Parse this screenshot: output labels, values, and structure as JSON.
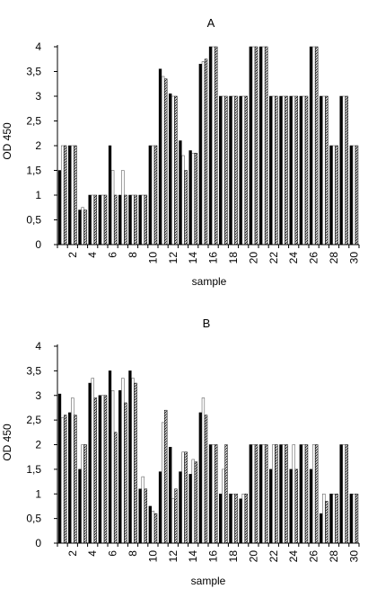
{
  "chart_data": [
    {
      "type": "bar",
      "title": "A",
      "xlabel": "sample",
      "ylabel": "OD 450",
      "ylim": [
        0,
        4
      ],
      "yticks": [
        "0",
        "0,5",
        "1",
        "1,5",
        "2",
        "2,5",
        "3",
        "3,5",
        "4"
      ],
      "xticks": [
        "2",
        "4",
        "6",
        "8",
        "10",
        "12",
        "14",
        "16",
        "18",
        "20",
        "22",
        "24",
        "26",
        "28",
        "30"
      ],
      "categories": [
        "1",
        "2",
        "3",
        "4",
        "5",
        "6",
        "7",
        "8",
        "9",
        "10",
        "11",
        "12",
        "13",
        "14",
        "15",
        "16",
        "17",
        "18",
        "19",
        "20",
        "21",
        "22",
        "23",
        "24",
        "25",
        "26",
        "27",
        "28",
        "29",
        "30"
      ],
      "series": [
        {
          "values": [
            1.5,
            2.0,
            0.7,
            1.0,
            1.0,
            2.0,
            1.0,
            1.0,
            1.0,
            2.0,
            3.55,
            3.05,
            2.1,
            1.9,
            3.65,
            4.0,
            3.0,
            3.0,
            3.0,
            4.0,
            4.0,
            3.0,
            3.0,
            3.0,
            3.0,
            4.0,
            3.0,
            2.0,
            3.0,
            2.0
          ]
        },
        {
          "values": [
            2.0,
            2.0,
            0.75,
            1.0,
            1.0,
            1.5,
            1.5,
            1.0,
            1.0,
            2.0,
            3.4,
            3.0,
            1.8,
            1.85,
            3.7,
            4.0,
            3.0,
            3.0,
            3.0,
            4.0,
            4.0,
            3.0,
            3.0,
            3.0,
            3.0,
            4.0,
            3.0,
            2.0,
            3.0,
            2.0
          ]
        },
        {
          "values": [
            2.0,
            2.0,
            0.7,
            1.0,
            1.0,
            1.0,
            1.0,
            1.0,
            1.0,
            2.0,
            3.35,
            3.0,
            1.5,
            1.85,
            3.75,
            4.0,
            3.0,
            3.0,
            3.0,
            4.0,
            4.0,
            3.0,
            3.0,
            3.0,
            3.0,
            4.0,
            3.0,
            2.0,
            3.0,
            2.0
          ]
        }
      ]
    },
    {
      "type": "bar",
      "title": "B",
      "xlabel": "sample",
      "ylabel": "OD 450",
      "ylim": [
        0,
        4
      ],
      "yticks": [
        "0",
        "0,5",
        "1",
        "1,5",
        "2",
        "2,5",
        "3",
        "3,5",
        "4"
      ],
      "xticks": [
        "2",
        "4",
        "6",
        "8",
        "10",
        "12",
        "14",
        "16",
        "18",
        "20",
        "22",
        "24",
        "26",
        "28",
        "30"
      ],
      "categories": [
        "1",
        "2",
        "3",
        "4",
        "5",
        "6",
        "7",
        "8",
        "9",
        "10",
        "11",
        "12",
        "13",
        "14",
        "15",
        "16",
        "17",
        "18",
        "19",
        "20",
        "21",
        "22",
        "23",
        "24",
        "25",
        "26",
        "27",
        "28",
        "29",
        "30"
      ],
      "series": [
        {
          "values": [
            3.03,
            2.65,
            1.5,
            3.25,
            3.0,
            3.5,
            3.1,
            3.5,
            1.1,
            0.75,
            1.45,
            1.95,
            1.45,
            1.4,
            2.65,
            2.0,
            1.0,
            1.0,
            0.9,
            2.0,
            2.0,
            1.5,
            2.0,
            1.5,
            2.0,
            1.5,
            0.6,
            1.0,
            2.0,
            1.0
          ]
        },
        {
          "values": [
            2.55,
            2.95,
            2.0,
            3.35,
            3.0,
            3.1,
            3.35,
            3.35,
            1.35,
            0.65,
            2.45,
            0.9,
            1.85,
            1.7,
            2.95,
            2.0,
            1.5,
            1.0,
            1.0,
            2.0,
            2.0,
            2.0,
            2.0,
            2.0,
            2.0,
            2.0,
            1.0,
            1.0,
            2.0,
            1.0
          ]
        },
        {
          "values": [
            2.6,
            2.6,
            2.0,
            2.95,
            3.0,
            2.25,
            2.85,
            3.25,
            1.1,
            0.6,
            2.7,
            1.1,
            1.85,
            1.65,
            2.6,
            2.0,
            2.0,
            1.0,
            1.0,
            2.0,
            2.0,
            2.0,
            2.0,
            1.5,
            2.0,
            2.0,
            0.85,
            1.0,
            2.0,
            1.0
          ]
        }
      ]
    }
  ]
}
